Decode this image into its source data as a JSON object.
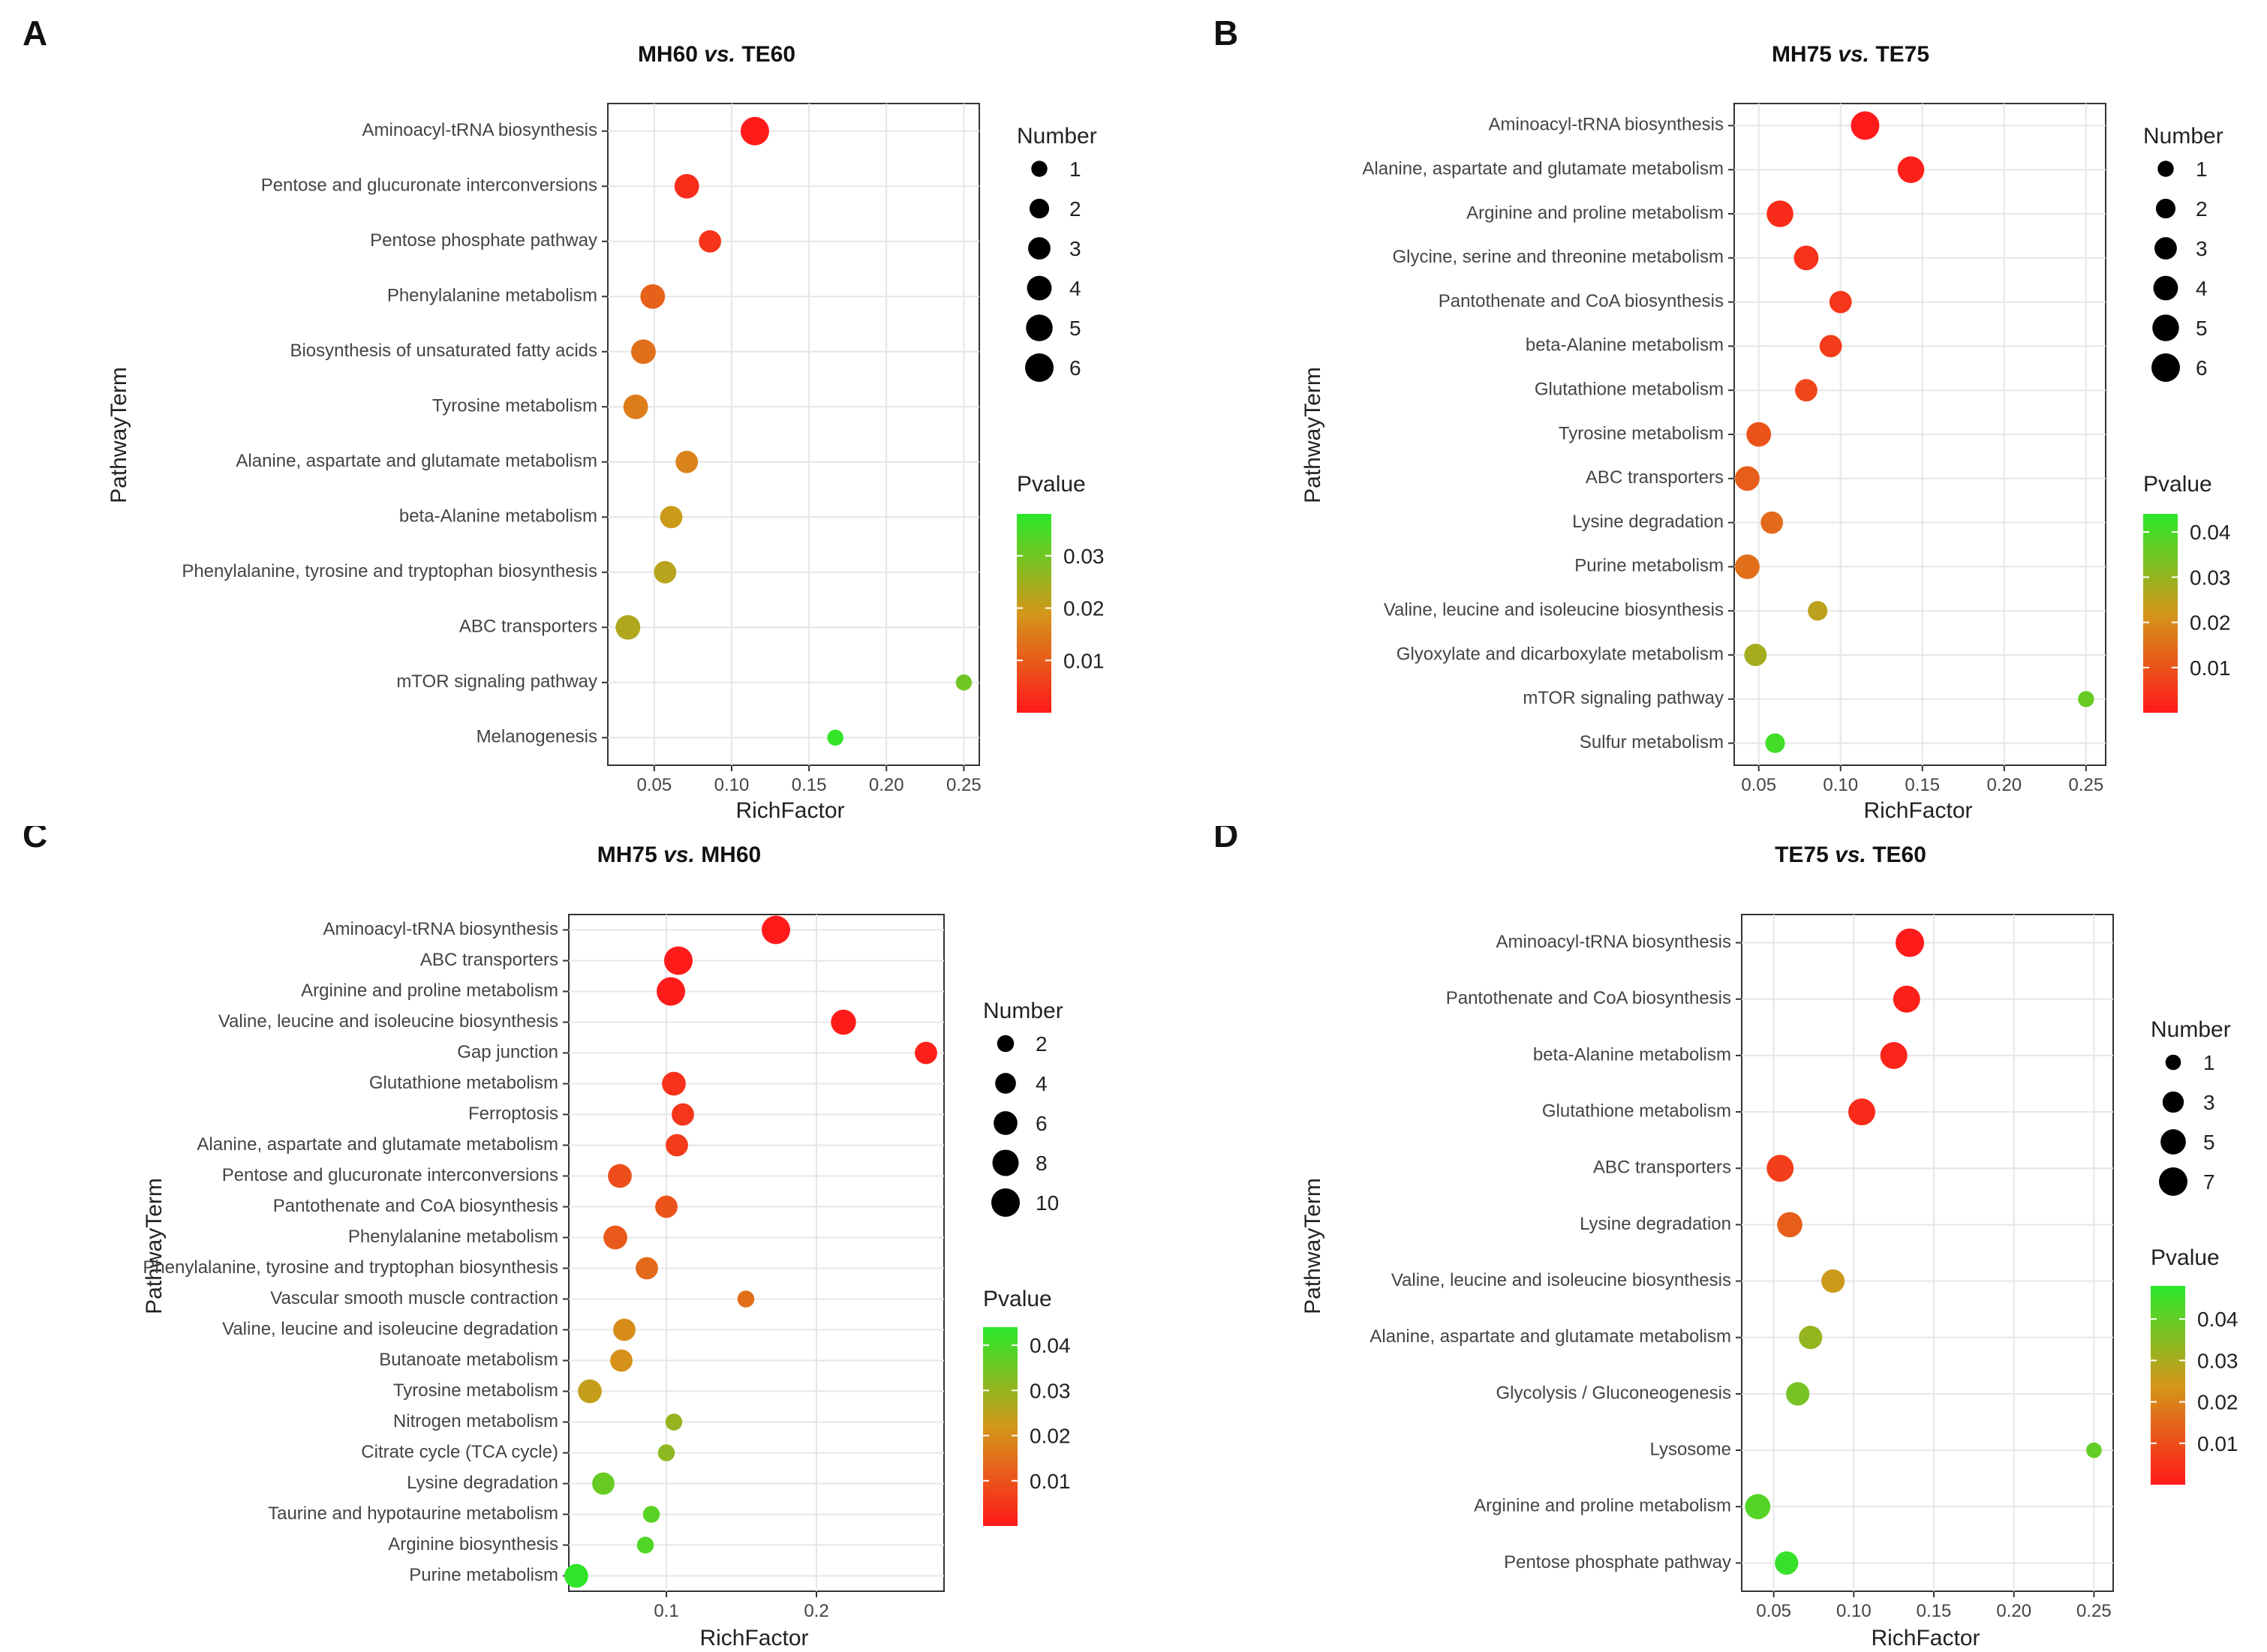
{
  "chart_data": [
    {
      "panel": "A",
      "type": "scatter",
      "title_a": "MH60 ",
      "title_vs": "vs.",
      "title_b": " TE60",
      "xlabel": "RichFactor",
      "ylabel": "PathwayTerm",
      "xlim": [
        0.02,
        0.26
      ],
      "xticks": [
        0.05,
        0.1,
        0.15,
        0.2,
        0.25
      ],
      "xtick_labels": [
        "0.05",
        "0.10",
        "0.15",
        "0.20",
        "0.25"
      ],
      "categories": [
        "Aminoacyl-tRNA biosynthesis",
        "Pentose and glucuronate interconversions",
        "Pentose phosphate pathway",
        "Phenylalanine metabolism",
        "Biosynthesis of unsaturated fatty acids",
        "Tyrosine metabolism",
        "Alanine, aspartate and glutamate metabolism",
        "beta-Alanine metabolism",
        "Phenylalanine, tyrosine and tryptophan biosynthesis",
        "ABC transporters",
        "mTOR signaling pathway",
        "Melanogenesis"
      ],
      "x": [
        0.115,
        0.071,
        0.086,
        0.049,
        0.043,
        0.038,
        0.071,
        0.061,
        0.057,
        0.033,
        0.25,
        0.167
      ],
      "number": [
        6,
        4,
        3,
        4,
        4,
        4,
        3,
        3,
        3,
        4,
        1,
        1
      ],
      "pvalue": [
        0.0001,
        0.003,
        0.004,
        0.011,
        0.013,
        0.015,
        0.016,
        0.02,
        0.022,
        0.023,
        0.03,
        0.037
      ],
      "legend_size": {
        "title": "Number",
        "sizes": [
          1,
          2,
          3,
          4,
          5,
          6
        ],
        "labels": [
          "1",
          "2",
          "3",
          "4",
          "5",
          "6"
        ],
        "max": 6
      },
      "legend_color": {
        "title": "Pvalue",
        "ticks": [
          0.01,
          0.02,
          0.03
        ],
        "labels": [
          "0.01",
          "0.02",
          "0.03"
        ],
        "range": [
          0,
          0.038
        ]
      }
    },
    {
      "panel": "B",
      "type": "scatter",
      "title_a": "MH75 ",
      "title_vs": "vs.",
      "title_b": " TE75",
      "xlabel": "RichFactor",
      "ylabel": "PathwayTerm",
      "xlim": [
        0.035,
        0.262
      ],
      "xticks": [
        0.05,
        0.1,
        0.15,
        0.2,
        0.25
      ],
      "xtick_labels": [
        "0.05",
        "0.10",
        "0.15",
        "0.20",
        "0.25"
      ],
      "categories": [
        "Aminoacyl-tRNA biosynthesis",
        "Alanine, aspartate and glutamate metabolism",
        "Arginine and proline metabolism",
        "Glycine, serine and threonine metabolism",
        "Pantothenate and CoA biosynthesis",
        "beta-Alanine metabolism",
        "Glutathione metabolism",
        "Tyrosine metabolism",
        "ABC transporters",
        "Lysine degradation",
        "Purine metabolism",
        "Valine, leucine and isoleucine biosynthesis",
        "Glyoxylate and dicarboxylate metabolism",
        "mTOR signaling pathway",
        "Sulfur metabolism"
      ],
      "x": [
        0.115,
        0.143,
        0.063,
        0.079,
        0.1,
        0.094,
        0.079,
        0.05,
        0.043,
        0.058,
        0.043,
        0.086,
        0.048,
        0.25,
        0.06
      ],
      "number": [
        6,
        5,
        5,
        4,
        3,
        3,
        3,
        4,
        4,
        3,
        4,
        2,
        3,
        1,
        2
      ],
      "pvalue": [
        0.0001,
        0.001,
        0.003,
        0.004,
        0.005,
        0.006,
        0.008,
        0.01,
        0.012,
        0.014,
        0.015,
        0.025,
        0.028,
        0.036,
        0.041
      ],
      "legend_size": {
        "title": "Number",
        "sizes": [
          1,
          2,
          3,
          4,
          5,
          6
        ],
        "labels": [
          "1",
          "2",
          "3",
          "4",
          "5",
          "6"
        ],
        "max": 6
      },
      "legend_color": {
        "title": "Pvalue",
        "ticks": [
          0.01,
          0.02,
          0.03,
          0.04
        ],
        "labels": [
          "0.01",
          "0.02",
          "0.03",
          "0.04"
        ],
        "range": [
          0,
          0.044
        ]
      }
    },
    {
      "panel": "C",
      "type": "scatter",
      "title_a": "MH75 ",
      "title_vs": "vs.",
      "title_b": " MH60",
      "xlabel": "RichFactor",
      "ylabel": "PathwayTerm",
      "xlim": [
        0.035,
        0.285
      ],
      "xticks": [
        0.1,
        0.2
      ],
      "xtick_labels": [
        "0.1",
        "0.2"
      ],
      "categories": [
        "Aminoacyl-tRNA biosynthesis",
        "ABC transporters",
        "Arginine and proline metabolism",
        "Valine, leucine and isoleucine biosynthesis",
        "Gap junction",
        "Glutathione metabolism",
        "Ferroptosis",
        "Alanine, aspartate and glutamate metabolism",
        "Pentose and glucuronate interconversions",
        "Pantothenate and CoA biosynthesis",
        "Phenylalanine metabolism",
        "Phenylalanine, tyrosine and tryptophan biosynthesis",
        "Vascular smooth muscle contraction",
        "Valine, leucine and isoleucine degradation",
        "Butanoate metabolism",
        "Tyrosine metabolism",
        "Nitrogen metabolism",
        "Citrate cycle (TCA cycle)",
        "Lysine degradation",
        "Taurine and hypotaurine metabolism",
        "Arginine biosynthesis",
        "Purine metabolism"
      ],
      "x": [
        0.173,
        0.108,
        0.103,
        0.218,
        0.273,
        0.105,
        0.111,
        0.107,
        0.069,
        0.1,
        0.066,
        0.087,
        0.153,
        0.072,
        0.07,
        0.049,
        0.105,
        0.1,
        0.058,
        0.09,
        0.086,
        0.04
      ],
      "number": [
        10,
        10,
        10,
        7,
        5,
        6,
        5,
        5,
        6,
        5,
        6,
        5,
        2,
        5,
        5,
        6,
        2,
        2,
        5,
        2,
        2,
        6
      ],
      "pvalue": [
        0.0001,
        0.0002,
        0.0003,
        0.0004,
        0.001,
        0.004,
        0.005,
        0.006,
        0.009,
        0.01,
        0.011,
        0.014,
        0.015,
        0.02,
        0.021,
        0.024,
        0.03,
        0.031,
        0.036,
        0.038,
        0.039,
        0.043
      ],
      "legend_size": {
        "title": "Number",
        "sizes": [
          2,
          4,
          6,
          8,
          10
        ],
        "labels": [
          "2",
          "4",
          "6",
          "8",
          "10"
        ],
        "max": 10
      },
      "legend_color": {
        "title": "Pvalue",
        "ticks": [
          0.01,
          0.02,
          0.03,
          0.04
        ],
        "labels": [
          "0.01",
          "0.02",
          "0.03",
          "0.04"
        ],
        "range": [
          0,
          0.044
        ]
      }
    },
    {
      "panel": "D",
      "type": "scatter",
      "title_a": "TE75 ",
      "title_vs": "vs.",
      "title_b": " TE60",
      "xlabel": "RichFactor",
      "ylabel": "PathwayTerm",
      "xlim": [
        0.03,
        0.262
      ],
      "xticks": [
        0.05,
        0.1,
        0.15,
        0.2,
        0.25
      ],
      "xtick_labels": [
        "0.05",
        "0.10",
        "0.15",
        "0.20",
        "0.25"
      ],
      "categories": [
        "Aminoacyl-tRNA biosynthesis",
        "Pantothenate and CoA biosynthesis",
        "beta-Alanine metabolism",
        "Glutathione metabolism",
        "ABC transporters",
        "Lysine degradation",
        "Valine, leucine and isoleucine biosynthesis",
        "Alanine, aspartate and glutamate metabolism",
        "Glycolysis / Gluconeogenesis",
        "Lysosome",
        "Arginine and proline metabolism",
        "Pentose phosphate pathway"
      ],
      "x": [
        0.135,
        0.133,
        0.125,
        0.105,
        0.054,
        0.06,
        0.087,
        0.073,
        0.065,
        0.25,
        0.04,
        0.058
      ],
      "number": [
        7,
        6,
        6,
        6,
        6,
        5,
        4,
        4,
        4,
        1,
        5,
        4
      ],
      "pvalue": [
        0.0001,
        0.001,
        0.002,
        0.003,
        0.007,
        0.013,
        0.025,
        0.033,
        0.037,
        0.04,
        0.042,
        0.046
      ],
      "legend_size": {
        "title": "Number",
        "sizes": [
          1,
          3,
          5,
          7
        ],
        "labels": [
          "1",
          "3",
          "5",
          "7"
        ],
        "max": 7
      },
      "legend_color": {
        "title": "Pvalue",
        "ticks": [
          0.01,
          0.02,
          0.03,
          0.04
        ],
        "labels": [
          "0.01",
          "0.02",
          "0.03",
          "0.04"
        ],
        "range": [
          0,
          0.048
        ]
      }
    }
  ],
  "colors": {
    "low": "#ff1a1a",
    "mid": "#d3971a",
    "high": "#2ae82a"
  }
}
